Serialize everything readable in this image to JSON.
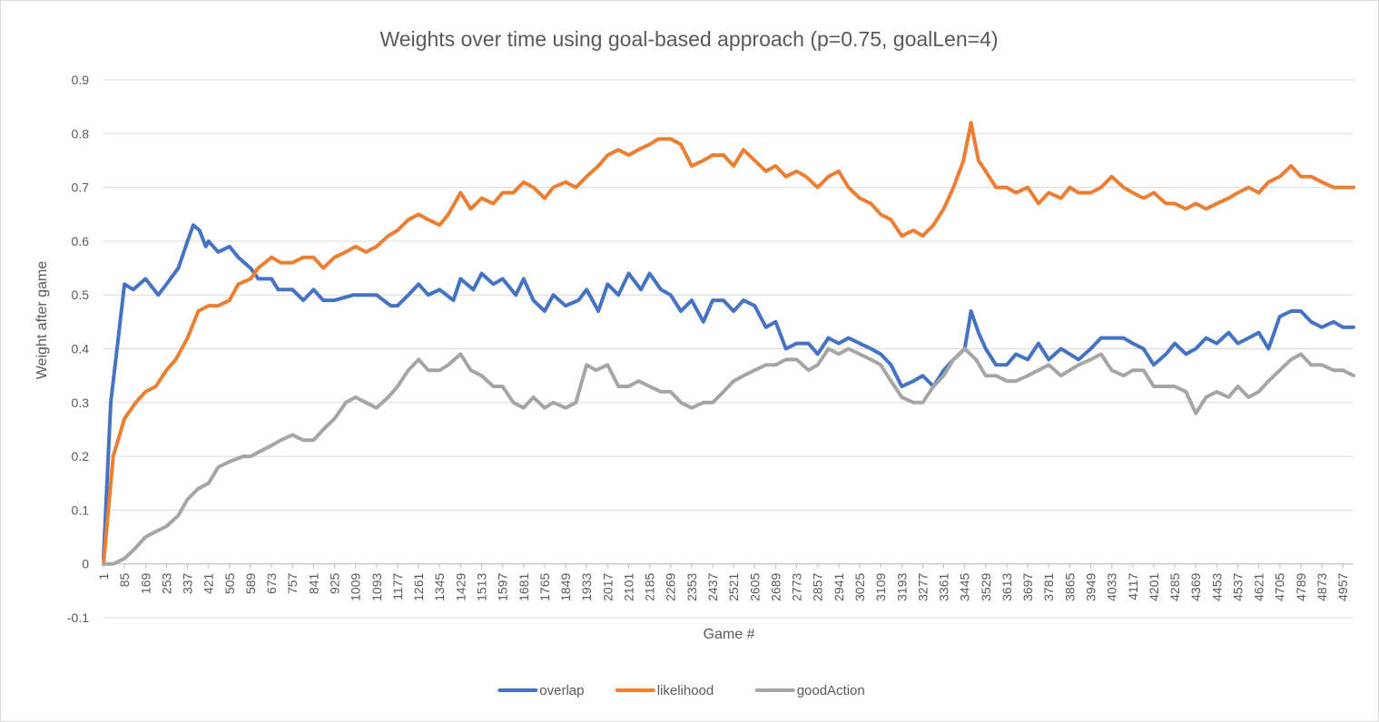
{
  "chart_data": {
    "type": "line",
    "title": "Weights over time using goal-based approach (p=0.75, goalLen=4)",
    "xlabel": "Game #",
    "ylabel": "Weight after game",
    "ylim": [
      -0.1,
      0.9
    ],
    "xlim": [
      1,
      5000
    ],
    "y_ticks": [
      "-0.1",
      "0",
      "0.1",
      "0.2",
      "0.3",
      "0.4",
      "0.5",
      "0.6",
      "0.7",
      "0.8",
      "0.9"
    ],
    "x_ticks": [
      "1",
      "85",
      "169",
      "253",
      "337",
      "421",
      "505",
      "589",
      "673",
      "757",
      "841",
      "925",
      "1009",
      "1093",
      "1177",
      "1261",
      "1345",
      "1429",
      "1513",
      "1597",
      "1681",
      "1765",
      "1849",
      "1933",
      "2017",
      "2101",
      "2185",
      "2269",
      "2353",
      "2437",
      "2521",
      "2605",
      "2689",
      "2773",
      "2857",
      "2941",
      "3025",
      "3109",
      "3193",
      "3277",
      "3361",
      "3445",
      "3529",
      "3613",
      "3697",
      "3781",
      "3865",
      "3949",
      "4033",
      "4117",
      "4201",
      "4285",
      "4369",
      "4453",
      "4537",
      "4621",
      "4705",
      "4789",
      "4873",
      "4957"
    ],
    "grid": true,
    "legend": "bottom",
    "series": [
      {
        "name": "overlap",
        "color": "#4472c4",
        "x": [
          1,
          30,
          60,
          85,
          120,
          169,
          220,
          253,
          300,
          337,
          360,
          385,
          410,
          421,
          460,
          505,
          540,
          589,
          620,
          673,
          700,
          757,
          800,
          841,
          880,
          925,
          1000,
          1093,
          1150,
          1177,
          1220,
          1261,
          1300,
          1345,
          1400,
          1429,
          1480,
          1513,
          1560,
          1597,
          1650,
          1681,
          1720,
          1765,
          1800,
          1849,
          1900,
          1933,
          1980,
          2017,
          2060,
          2101,
          2150,
          2185,
          2230,
          2269,
          2310,
          2353,
          2400,
          2437,
          2480,
          2521,
          2560,
          2605,
          2650,
          2689,
          2730,
          2773,
          2820,
          2857,
          2900,
          2941,
          2980,
          3025,
          3070,
          3109,
          3150,
          3193,
          3240,
          3277,
          3320,
          3361,
          3400,
          3445,
          3470,
          3500,
          3529,
          3570,
          3613,
          3650,
          3697,
          3740,
          3781,
          3830,
          3865,
          3900,
          3949,
          3990,
          4033,
          4080,
          4117,
          4160,
          4201,
          4250,
          4285,
          4330,
          4369,
          4410,
          4453,
          4500,
          4537,
          4580,
          4621,
          4660,
          4705,
          4750,
          4789,
          4830,
          4873,
          4920,
          4957,
          5000
        ],
        "y": [
          0.01,
          0.3,
          0.42,
          0.52,
          0.51,
          0.53,
          0.5,
          0.52,
          0.55,
          0.6,
          0.63,
          0.62,
          0.59,
          0.6,
          0.58,
          0.59,
          0.57,
          0.55,
          0.53,
          0.53,
          0.51,
          0.51,
          0.49,
          0.51,
          0.49,
          0.49,
          0.5,
          0.5,
          0.48,
          0.48,
          0.5,
          0.52,
          0.5,
          0.51,
          0.49,
          0.53,
          0.51,
          0.54,
          0.52,
          0.53,
          0.5,
          0.53,
          0.49,
          0.47,
          0.5,
          0.48,
          0.49,
          0.51,
          0.47,
          0.52,
          0.5,
          0.54,
          0.51,
          0.54,
          0.51,
          0.5,
          0.47,
          0.49,
          0.45,
          0.49,
          0.49,
          0.47,
          0.49,
          0.48,
          0.44,
          0.45,
          0.4,
          0.41,
          0.41,
          0.39,
          0.42,
          0.41,
          0.42,
          0.41,
          0.4,
          0.39,
          0.37,
          0.33,
          0.34,
          0.35,
          0.33,
          0.36,
          0.38,
          0.4,
          0.47,
          0.43,
          0.4,
          0.37,
          0.37,
          0.39,
          0.38,
          0.41,
          0.38,
          0.4,
          0.39,
          0.38,
          0.4,
          0.42,
          0.42,
          0.42,
          0.41,
          0.4,
          0.37,
          0.39,
          0.41,
          0.39,
          0.4,
          0.42,
          0.41,
          0.43,
          0.41,
          0.42,
          0.43,
          0.4,
          0.46,
          0.47,
          0.47,
          0.45,
          0.44,
          0.45,
          0.44,
          0.44
        ]
      },
      {
        "name": "likelihood",
        "color": "#ed7d31",
        "x": [
          1,
          40,
          85,
          130,
          169,
          210,
          253,
          290,
          337,
          380,
          421,
          460,
          505,
          540,
          589,
          620,
          673,
          710,
          757,
          800,
          841,
          880,
          925,
          970,
          1009,
          1050,
          1093,
          1140,
          1177,
          1220,
          1261,
          1300,
          1345,
          1380,
          1429,
          1470,
          1513,
          1560,
          1597,
          1640,
          1681,
          1720,
          1765,
          1800,
          1849,
          1890,
          1933,
          1980,
          2017,
          2060,
          2101,
          2140,
          2185,
          2220,
          2269,
          2310,
          2353,
          2400,
          2437,
          2480,
          2521,
          2560,
          2605,
          2650,
          2689,
          2730,
          2773,
          2810,
          2857,
          2900,
          2941,
          2980,
          3025,
          3070,
          3109,
          3150,
          3193,
          3240,
          3277,
          3320,
          3361,
          3400,
          3440,
          3470,
          3500,
          3529,
          3570,
          3613,
          3650,
          3697,
          3740,
          3781,
          3830,
          3865,
          3900,
          3949,
          3990,
          4033,
          4080,
          4117,
          4160,
          4201,
          4250,
          4285,
          4330,
          4369,
          4410,
          4453,
          4500,
          4537,
          4580,
          4621,
          4660,
          4705,
          4750,
          4789,
          4830,
          4873,
          4920,
          4957,
          5000
        ],
        "y": [
          0.0,
          0.2,
          0.27,
          0.3,
          0.32,
          0.33,
          0.36,
          0.38,
          0.42,
          0.47,
          0.48,
          0.48,
          0.49,
          0.52,
          0.53,
          0.55,
          0.57,
          0.56,
          0.56,
          0.57,
          0.57,
          0.55,
          0.57,
          0.58,
          0.59,
          0.58,
          0.59,
          0.61,
          0.62,
          0.64,
          0.65,
          0.64,
          0.63,
          0.65,
          0.69,
          0.66,
          0.68,
          0.67,
          0.69,
          0.69,
          0.71,
          0.7,
          0.68,
          0.7,
          0.71,
          0.7,
          0.72,
          0.74,
          0.76,
          0.77,
          0.76,
          0.77,
          0.78,
          0.79,
          0.79,
          0.78,
          0.74,
          0.75,
          0.76,
          0.76,
          0.74,
          0.77,
          0.75,
          0.73,
          0.74,
          0.72,
          0.73,
          0.72,
          0.7,
          0.72,
          0.73,
          0.7,
          0.68,
          0.67,
          0.65,
          0.64,
          0.61,
          0.62,
          0.61,
          0.63,
          0.66,
          0.7,
          0.75,
          0.82,
          0.75,
          0.73,
          0.7,
          0.7,
          0.69,
          0.7,
          0.67,
          0.69,
          0.68,
          0.7,
          0.69,
          0.69,
          0.7,
          0.72,
          0.7,
          0.69,
          0.68,
          0.69,
          0.67,
          0.67,
          0.66,
          0.67,
          0.66,
          0.67,
          0.68,
          0.69,
          0.7,
          0.69,
          0.71,
          0.72,
          0.74,
          0.72,
          0.72,
          0.71,
          0.7,
          0.7,
          0.7
        ]
      },
      {
        "name": "goodAction",
        "color": "#a5a5a5",
        "x": [
          1,
          40,
          85,
          130,
          169,
          210,
          253,
          300,
          337,
          380,
          421,
          460,
          505,
          560,
          589,
          630,
          673,
          710,
          757,
          800,
          841,
          880,
          925,
          970,
          1009,
          1050,
          1093,
          1140,
          1177,
          1220,
          1261,
          1300,
          1345,
          1380,
          1429,
          1470,
          1513,
          1560,
          1597,
          1640,
          1681,
          1720,
          1765,
          1800,
          1849,
          1890,
          1933,
          1970,
          2017,
          2060,
          2101,
          2140,
          2185,
          2230,
          2269,
          2310,
          2353,
          2400,
          2437,
          2480,
          2521,
          2560,
          2605,
          2650,
          2689,
          2730,
          2773,
          2820,
          2857,
          2900,
          2941,
          2980,
          3025,
          3070,
          3109,
          3150,
          3193,
          3240,
          3277,
          3320,
          3361,
          3400,
          3445,
          3490,
          3529,
          3570,
          3613,
          3650,
          3697,
          3740,
          3781,
          3830,
          3865,
          3900,
          3949,
          3990,
          4033,
          4080,
          4117,
          4160,
          4201,
          4250,
          4285,
          4330,
          4369,
          4410,
          4453,
          4500,
          4537,
          4580,
          4621,
          4660,
          4705,
          4750,
          4789,
          4830,
          4873,
          4920,
          4957,
          5000
        ],
        "y": [
          0.0,
          0.0,
          0.01,
          0.03,
          0.05,
          0.06,
          0.07,
          0.09,
          0.12,
          0.14,
          0.15,
          0.18,
          0.19,
          0.2,
          0.2,
          0.21,
          0.22,
          0.23,
          0.24,
          0.23,
          0.23,
          0.25,
          0.27,
          0.3,
          0.31,
          0.3,
          0.29,
          0.31,
          0.33,
          0.36,
          0.38,
          0.36,
          0.36,
          0.37,
          0.39,
          0.36,
          0.35,
          0.33,
          0.33,
          0.3,
          0.29,
          0.31,
          0.29,
          0.3,
          0.29,
          0.3,
          0.37,
          0.36,
          0.37,
          0.33,
          0.33,
          0.34,
          0.33,
          0.32,
          0.32,
          0.3,
          0.29,
          0.3,
          0.3,
          0.32,
          0.34,
          0.35,
          0.36,
          0.37,
          0.37,
          0.38,
          0.38,
          0.36,
          0.37,
          0.4,
          0.39,
          0.4,
          0.39,
          0.38,
          0.37,
          0.34,
          0.31,
          0.3,
          0.3,
          0.33,
          0.35,
          0.38,
          0.4,
          0.38,
          0.35,
          0.35,
          0.34,
          0.34,
          0.35,
          0.36,
          0.37,
          0.35,
          0.36,
          0.37,
          0.38,
          0.39,
          0.36,
          0.35,
          0.36,
          0.36,
          0.33,
          0.33,
          0.33,
          0.32,
          0.28,
          0.31,
          0.32,
          0.31,
          0.33,
          0.31,
          0.32,
          0.34,
          0.36,
          0.38,
          0.39,
          0.37,
          0.37,
          0.36,
          0.36,
          0.35
        ]
      }
    ]
  }
}
